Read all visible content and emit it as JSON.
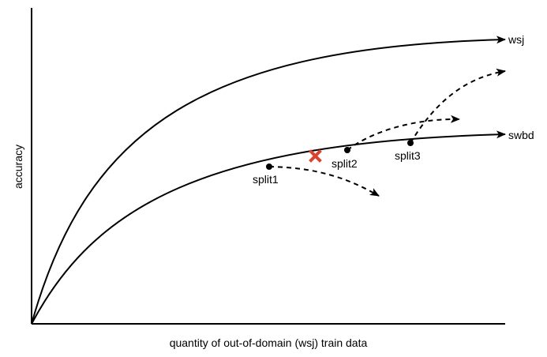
{
  "axes": {
    "y_label": "accuracy",
    "x_label": "quantity of out-of-domain (wsj) train data"
  },
  "curves": {
    "upper": {
      "label": "wsj"
    },
    "lower": {
      "label": "swbd"
    }
  },
  "points": {
    "split1": "split1",
    "split2": "split2",
    "split3": "split3"
  },
  "colors": {
    "ink": "#000000",
    "marker": "#d9432f"
  }
}
